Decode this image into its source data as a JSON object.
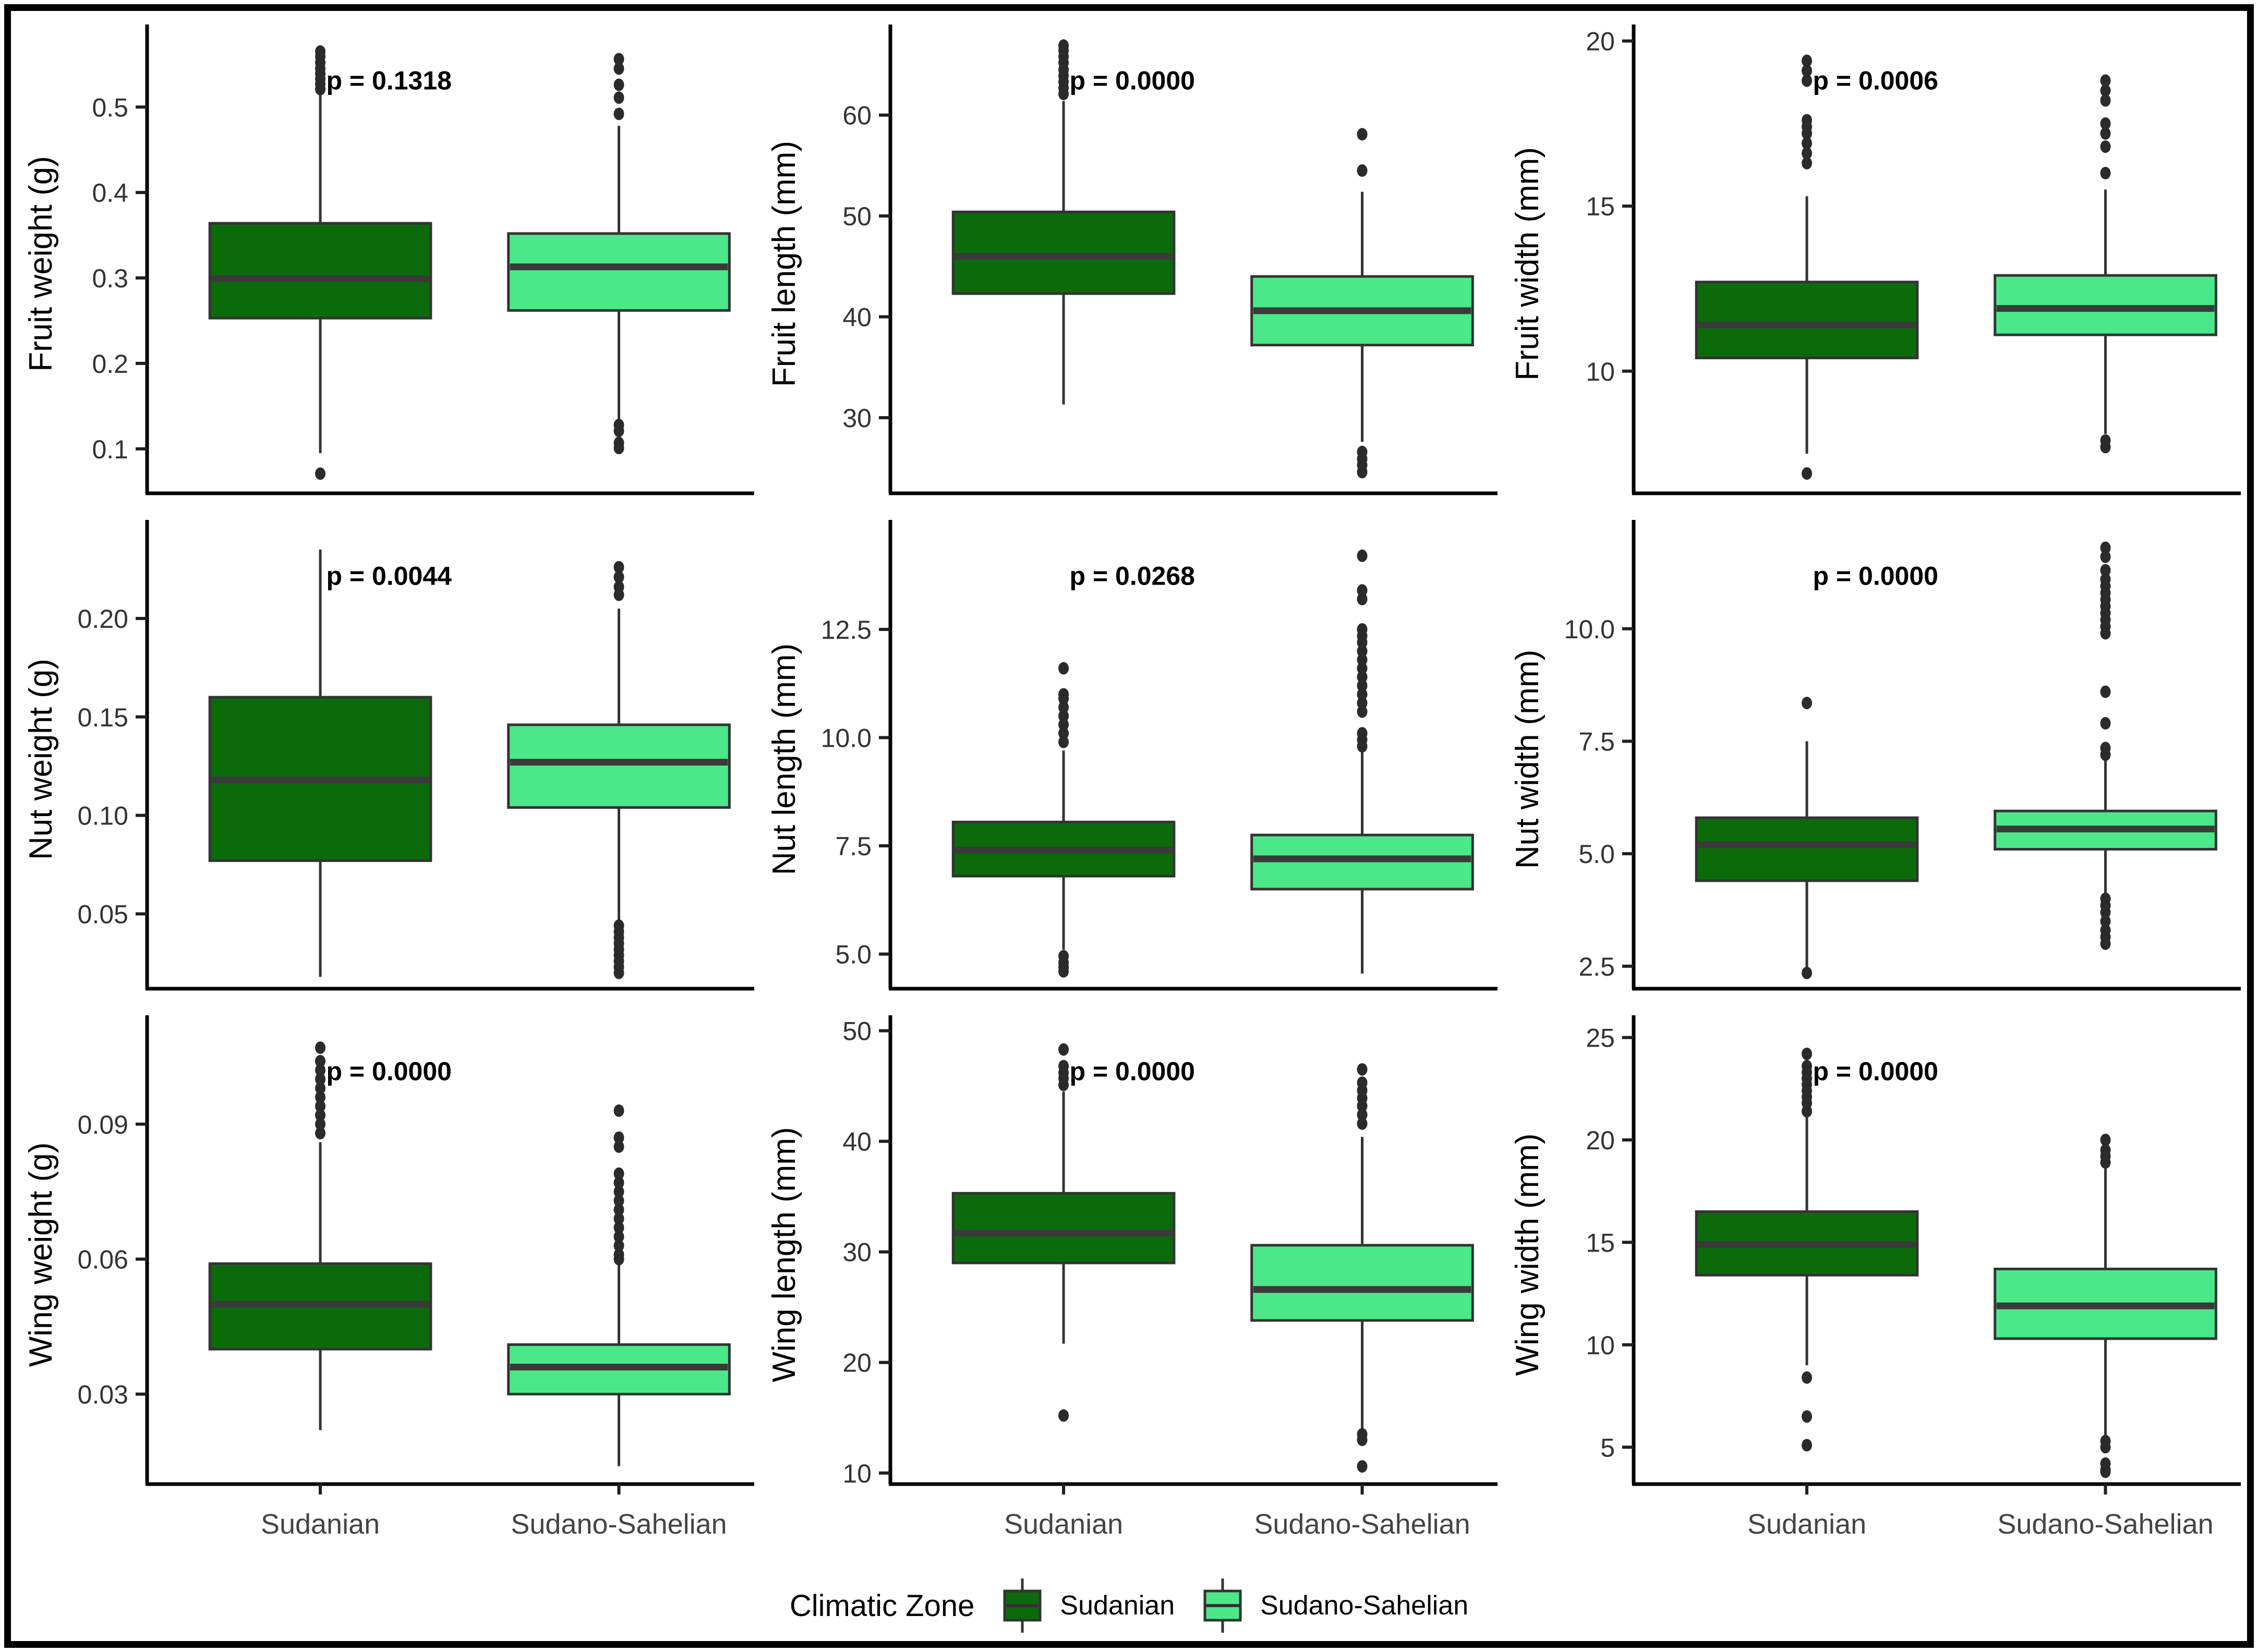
{
  "figure": {
    "background": "#ffffff",
    "border_color": "#000000"
  },
  "colors": {
    "sudanian_fill": "#0B6B0B",
    "sudano_sahelian_fill": "#4BE88A",
    "box_stroke": "#333333",
    "median_line": "#3A3A3A",
    "outlier_dot": "#2B2B2B",
    "axis_line": "#000000",
    "tick_mark": "#1F1F1F",
    "tick_label": "#333333",
    "axis_title": "#000000",
    "category_label": "#444444",
    "p_label": "#000000"
  },
  "categories": [
    "Sudanian",
    "Sudano-Sahelian"
  ],
  "legend": {
    "title": "Climatic Zone",
    "items": [
      {
        "label": "Sudanian",
        "color": "#0B6B0B"
      },
      {
        "label": "Sudano-Sahelian",
        "color": "#4BE88A"
      }
    ]
  },
  "chart_data": [
    {
      "type": "boxplot",
      "ylabel": "Fruit weight (g)",
      "p_label": "p = 0.1318",
      "ylim": [
        0.048,
        0.585
      ],
      "yticks": [
        0.1,
        0.2,
        0.3,
        0.4,
        0.5
      ],
      "ytick_labels": [
        "0.1",
        "0.2",
        "0.3",
        "0.4",
        "0.5"
      ],
      "categories": [
        "Sudanian",
        "Sudano-Sahelian"
      ],
      "series": [
        {
          "name": "Sudanian",
          "whisker_low": 0.095,
          "q1": 0.253,
          "median": 0.299,
          "q3": 0.364,
          "whisker_high": 0.515,
          "outliers_high": [
            0.521,
            0.527,
            0.533,
            0.539,
            0.545,
            0.552,
            0.559,
            0.565
          ],
          "outliers_low": [
            0.071
          ]
        },
        {
          "name": "Sudano-Sahelian",
          "whisker_low": 0.133,
          "q1": 0.262,
          "median": 0.313,
          "q3": 0.352,
          "whisker_high": 0.478,
          "outliers_high": [
            0.492,
            0.511,
            0.526,
            0.545,
            0.556
          ],
          "outliers_low": [
            0.128,
            0.121,
            0.107,
            0.101
          ]
        }
      ]
    },
    {
      "type": "boxplot",
      "ylabel": "Fruit length (mm)",
      "p_label": "p = 0.0000",
      "ylim": [
        22.5,
        68
      ],
      "yticks": [
        30,
        40,
        50,
        60
      ],
      "ytick_labels": [
        "30",
        "40",
        "50",
        "60"
      ],
      "categories": [
        "Sudanian",
        "Sudano-Sahelian"
      ],
      "series": [
        {
          "name": "Sudanian",
          "whisker_low": 31.3,
          "q1": 42.3,
          "median": 46.0,
          "q3": 50.4,
          "whisker_high": 61.4,
          "outliers_high": [
            62.1,
            62.7,
            63.3,
            63.9,
            64.5,
            65.2,
            65.8,
            66.4,
            66.9
          ],
          "outliers_low": []
        },
        {
          "name": "Sudano-Sahelian",
          "whisker_low": 27.6,
          "q1": 37.2,
          "median": 40.6,
          "q3": 44.0,
          "whisker_high": 52.4,
          "outliers_high": [
            54.5,
            58.1
          ],
          "outliers_low": [
            26.6,
            25.9,
            25.3,
            24.6
          ]
        }
      ]
    },
    {
      "type": "boxplot",
      "ylabel": "Fruit width (mm)",
      "p_label": "p = 0.0006",
      "ylim": [
        6.3,
        20.2
      ],
      "yticks": [
        10,
        15,
        20
      ],
      "ytick_labels": [
        "10",
        "15",
        "20"
      ],
      "categories": [
        "Sudanian",
        "Sudano-Sahelian"
      ],
      "series": [
        {
          "name": "Sudanian",
          "whisker_low": 7.5,
          "q1": 10.4,
          "median": 11.4,
          "q3": 12.7,
          "whisker_high": 15.3,
          "outliers_high": [
            16.3,
            16.6,
            16.9,
            17.2,
            17.4,
            17.6,
            18.8,
            19.1,
            19.4
          ],
          "outliers_low": [
            6.9
          ]
        },
        {
          "name": "Sudano-Sahelian",
          "whisker_low": 8.1,
          "q1": 11.1,
          "median": 11.9,
          "q3": 12.9,
          "whisker_high": 15.5,
          "outliers_high": [
            16.0,
            16.8,
            17.2,
            17.5,
            18.2,
            18.5,
            18.8
          ],
          "outliers_low": [
            7.7,
            7.9
          ]
        }
      ]
    },
    {
      "type": "boxplot",
      "ylabel": "Nut weight (g)",
      "p_label": "p = 0.0044",
      "ylim": [
        0.012,
        0.245
      ],
      "yticks": [
        0.05,
        0.1,
        0.15,
        0.2
      ],
      "ytick_labels": [
        "0.05",
        "0.10",
        "0.15",
        "0.20"
      ],
      "categories": [
        "Sudanian",
        "Sudano-Sahelian"
      ],
      "series": [
        {
          "name": "Sudanian",
          "whisker_low": 0.018,
          "q1": 0.077,
          "median": 0.118,
          "q3": 0.16,
          "whisker_high": 0.235,
          "outliers_high": [],
          "outliers_low": []
        },
        {
          "name": "Sudano-Sahelian",
          "whisker_low": 0.047,
          "q1": 0.104,
          "median": 0.127,
          "q3": 0.146,
          "whisker_high": 0.205,
          "outliers_high": [
            0.212,
            0.216,
            0.221,
            0.226
          ],
          "outliers_low": [
            0.044,
            0.041,
            0.038,
            0.035,
            0.032,
            0.029,
            0.026,
            0.023,
            0.02
          ]
        }
      ]
    },
    {
      "type": "boxplot",
      "ylabel": "Nut length (mm)",
      "p_label": "p = 0.0268",
      "ylim": [
        4.2,
        14.8
      ],
      "yticks": [
        5.0,
        7.5,
        10.0,
        12.5
      ],
      "ytick_labels": [
        "5.0",
        "7.5",
        "10.0",
        "12.5"
      ],
      "categories": [
        "Sudanian",
        "Sudano-Sahelian"
      ],
      "series": [
        {
          "name": "Sudanian",
          "whisker_low": 5.1,
          "q1": 6.8,
          "median": 7.4,
          "q3": 8.05,
          "whisker_high": 9.7,
          "outliers_high": [
            9.9,
            10.1,
            10.3,
            10.5,
            10.7,
            10.9,
            11.0,
            11.6
          ],
          "outliers_low": [
            4.6,
            4.7,
            4.8,
            4.95
          ]
        },
        {
          "name": "Sudano-Sahelian",
          "whisker_low": 4.55,
          "q1": 6.5,
          "median": 7.2,
          "q3": 7.75,
          "whisker_high": 9.7,
          "outliers_high": [
            9.8,
            9.95,
            10.1,
            10.6,
            10.8,
            11.0,
            11.2,
            11.4,
            11.6,
            11.8,
            12.0,
            12.2,
            12.35,
            12.5,
            13.2,
            13.4,
            14.2
          ],
          "outliers_low": []
        }
      ]
    },
    {
      "type": "boxplot",
      "ylabel": "Nut width (mm)",
      "p_label": "p = 0.0000",
      "ylim": [
        2.0,
        12.2
      ],
      "yticks": [
        2.5,
        5.0,
        7.5,
        10.0
      ],
      "ytick_labels": [
        "2.5",
        "5.0",
        "7.5",
        "10.0"
      ],
      "categories": [
        "Sudanian",
        "Sudano-Sahelian"
      ],
      "series": [
        {
          "name": "Sudanian",
          "whisker_low": 2.45,
          "q1": 4.4,
          "median": 5.2,
          "q3": 5.8,
          "whisker_high": 7.5,
          "outliers_high": [
            8.35
          ],
          "outliers_low": [
            2.35
          ]
        },
        {
          "name": "Sudano-Sahelian",
          "whisker_low": 2.95,
          "q1": 5.1,
          "median": 5.55,
          "q3": 5.95,
          "whisker_high": 7.1,
          "outliers_high": [
            7.2,
            7.35,
            7.9,
            8.6,
            9.9,
            10.05,
            10.2,
            10.35,
            10.5,
            10.65,
            10.8,
            10.95,
            11.1,
            11.3,
            11.6,
            11.8
          ],
          "outliers_low": [
            3.0,
            3.15,
            3.3,
            3.5,
            3.7,
            3.85,
            4.0
          ]
        }
      ]
    },
    {
      "type": "boxplot",
      "ylabel": "Wing weight (g)",
      "p_label": "p = 0.0000",
      "ylim": [
        0.01,
        0.112
      ],
      "yticks": [
        0.03,
        0.06,
        0.09
      ],
      "ytick_labels": [
        "0.03",
        "0.06",
        "0.09"
      ],
      "categories": [
        "Sudanian",
        "Sudano-Sahelian"
      ],
      "series": [
        {
          "name": "Sudanian",
          "whisker_low": 0.022,
          "q1": 0.04,
          "median": 0.05,
          "q3": 0.059,
          "whisker_high": 0.086,
          "outliers_high": [
            0.088,
            0.09,
            0.092,
            0.094,
            0.096,
            0.098,
            0.1,
            0.102,
            0.104,
            0.107
          ],
          "outliers_low": []
        },
        {
          "name": "Sudano-Sahelian",
          "whisker_low": 0.014,
          "q1": 0.03,
          "median": 0.036,
          "q3": 0.041,
          "whisker_high": 0.059,
          "outliers_high": [
            0.06,
            0.061,
            0.063,
            0.065,
            0.067,
            0.069,
            0.071,
            0.073,
            0.075,
            0.077,
            0.079,
            0.085,
            0.087,
            0.093
          ],
          "outliers_low": []
        }
      ]
    },
    {
      "type": "boxplot",
      "ylabel": "Wing length (mm)",
      "p_label": "p = 0.0000",
      "ylim": [
        9,
        50.5
      ],
      "yticks": [
        10,
        20,
        30,
        40,
        50
      ],
      "ytick_labels": [
        "10",
        "20",
        "30",
        "40",
        "50"
      ],
      "categories": [
        "Sudanian",
        "Sudano-Sahelian"
      ],
      "series": [
        {
          "name": "Sudanian",
          "whisker_low": 21.7,
          "q1": 29.0,
          "median": 31.7,
          "q3": 35.3,
          "whisker_high": 44.5,
          "outliers_high": [
            45.1,
            45.7,
            46.2,
            46.8,
            48.3
          ],
          "outliers_low": [
            15.2
          ]
        },
        {
          "name": "Sudano-Sahelian",
          "whisker_low": 13.9,
          "q1": 23.8,
          "median": 26.6,
          "q3": 30.6,
          "whisker_high": 40.4,
          "outliers_high": [
            41.6,
            42.4,
            43.2,
            43.9,
            44.6,
            45.3,
            46.5
          ],
          "outliers_low": [
            13.5,
            13.0,
            10.6
          ]
        }
      ]
    },
    {
      "type": "boxplot",
      "ylabel": "Wing width (mm)",
      "p_label": "p = 0.0000",
      "ylim": [
        3.2,
        25.6
      ],
      "yticks": [
        5,
        10,
        15,
        20,
        25
      ],
      "ytick_labels": [
        "5",
        "10",
        "15",
        "20",
        "25"
      ],
      "categories": [
        "Sudanian",
        "Sudano-Sahelian"
      ],
      "series": [
        {
          "name": "Sudanian",
          "whisker_low": 9.0,
          "q1": 13.4,
          "median": 14.9,
          "q3": 16.5,
          "whisker_high": 21.1,
          "outliers_high": [
            21.4,
            21.8,
            22.1,
            22.4,
            22.7,
            23.0,
            23.3,
            23.6,
            24.2
          ],
          "outliers_low": [
            8.4,
            6.5,
            5.1
          ]
        },
        {
          "name": "Sudano-Sahelian",
          "whisker_low": 5.5,
          "q1": 10.3,
          "median": 11.9,
          "q3": 13.7,
          "whisker_high": 18.6,
          "outliers_high": [
            18.9,
            19.2,
            19.5,
            20.0
          ],
          "outliers_low": [
            5.3,
            5.0,
            4.2,
            3.9,
            3.8
          ]
        }
      ]
    }
  ]
}
